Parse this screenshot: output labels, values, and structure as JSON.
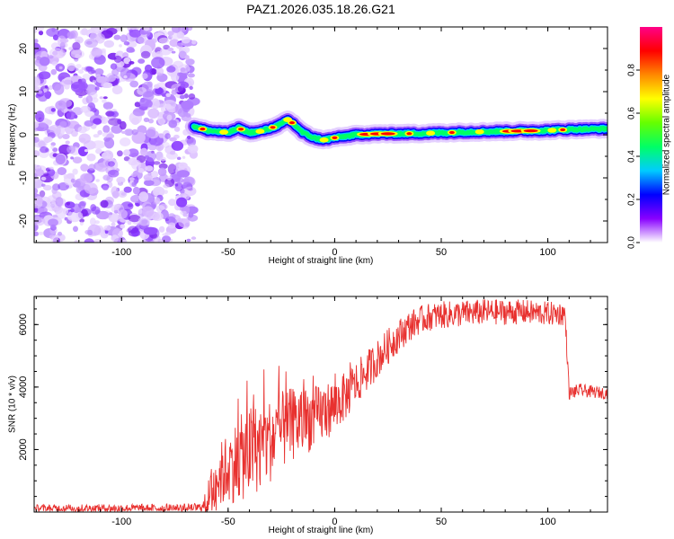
{
  "title": "PAZ1.2026.035.18.26.G21",
  "chart_data": [
    {
      "type": "heatmap",
      "title": "PAZ1.2026.035.18.26.G21",
      "xlabel": "Height of straight line (km)",
      "ylabel": "Frequency (Hz)",
      "xlim": [
        -141,
        128
      ],
      "ylim": [
        -25,
        25
      ],
      "xticks": [
        -100,
        -50,
        0,
        50,
        100
      ],
      "yticks": [
        -20,
        -10,
        0,
        10,
        20
      ],
      "noise_region_x": [
        -141,
        -66
      ],
      "signal_trace": {
        "description": "frequency of spectral peak vs height",
        "x": [
          -66,
          -60,
          -50,
          -45,
          -40,
          -35,
          -30,
          -25,
          -22,
          -20,
          -17,
          -15,
          -10,
          -5,
          0,
          10,
          20,
          40,
          60,
          80,
          100,
          110,
          128
        ],
        "y": [
          2.0,
          1.0,
          0.5,
          1.5,
          0.5,
          0.8,
          1.5,
          2.5,
          3.5,
          2.8,
          1.5,
          0.5,
          -0.7,
          -1.2,
          -0.7,
          0.0,
          0.2,
          0.3,
          0.6,
          0.8,
          1.0,
          1.2,
          1.4
        ]
      },
      "colorbar": {
        "label": "Normalized spectral amplitude",
        "range": [
          0,
          1
        ],
        "ticks": [
          "0.0",
          "0.2",
          "0.4",
          "0.6",
          "0.8"
        ],
        "colors": [
          "#ffffff",
          "#8800ff",
          "#0000ff",
          "#00ccff",
          "#00ff66",
          "#66ff00",
          "#ffff00",
          "#ff8800",
          "#ff0000",
          "#ff0088"
        ]
      }
    },
    {
      "type": "line",
      "xlabel": "Height of straight line (km)",
      "ylabel": "SNR (10 * v/v)",
      "xlim": [
        -141,
        128
      ],
      "ylim": [
        0,
        6900
      ],
      "xticks": [
        -100,
        -50,
        0,
        50,
        100
      ],
      "yticks": [
        2000,
        4000,
        6000
      ],
      "color": "#e8312f",
      "series": [
        {
          "name": "SNR",
          "x": [
            -141,
            -100,
            -70,
            -62,
            -60,
            -57,
            -55,
            -50,
            -45,
            -40,
            -35,
            -30,
            -25,
            -20,
            -15,
            -10,
            -5,
            0,
            5,
            10,
            15,
            20,
            25,
            30,
            35,
            40,
            45,
            50,
            60,
            70,
            80,
            90,
            100,
            108,
            109,
            110,
            115,
            120,
            128
          ],
          "y": [
            120,
            120,
            120,
            150,
            300,
            700,
            1100,
            1400,
            1700,
            1900,
            2100,
            2300,
            2600,
            2800,
            2900,
            3000,
            3200,
            3400,
            3700,
            4100,
            4500,
            4900,
            5300,
            5650,
            5950,
            6150,
            6250,
            6300,
            6350,
            6400,
            6400,
            6400,
            6350,
            6350,
            5200,
            3800,
            3900,
            3850,
            3800
          ]
        }
      ],
      "noise_amplitude": [
        {
          "x": -141,
          "amp": 120
        },
        {
          "x": -62,
          "amp": 150
        },
        {
          "x": -58,
          "amp": 900
        },
        {
          "x": -40,
          "amp": 1500
        },
        {
          "x": -15,
          "amp": 1100
        },
        {
          "x": 10,
          "amp": 700
        },
        {
          "x": 40,
          "amp": 450
        },
        {
          "x": 108,
          "amp": 380
        },
        {
          "x": 110,
          "amp": 220
        },
        {
          "x": 128,
          "amp": 180
        }
      ]
    }
  ]
}
